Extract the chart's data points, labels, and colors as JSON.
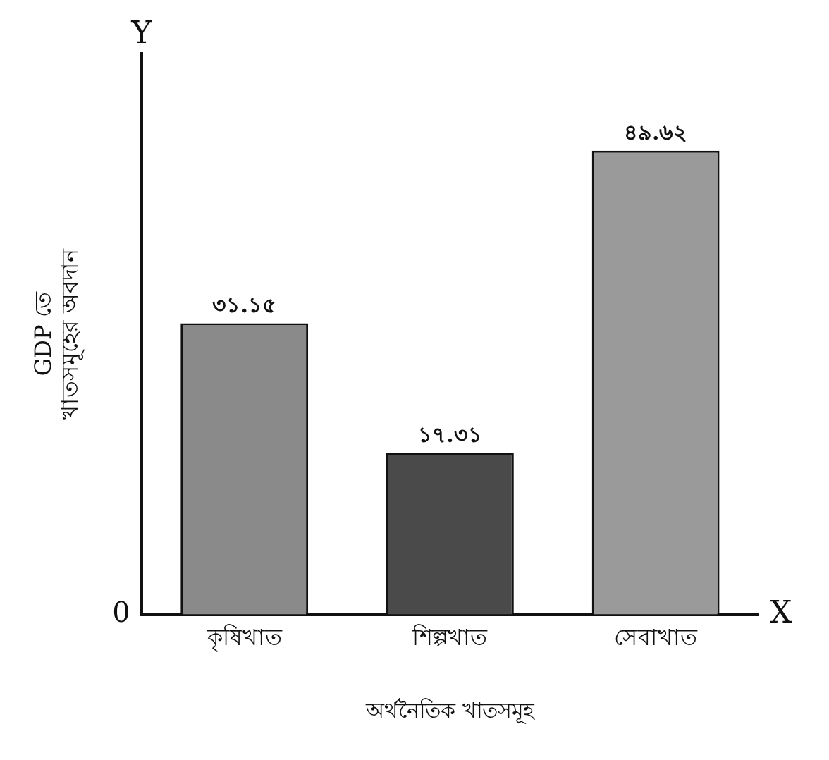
{
  "chart_data": {
    "type": "bar",
    "categories": [
      "কৃষিখাত",
      "শিল্পখাত",
      "সেবাখাত"
    ],
    "values": [
      31.15,
      17.31,
      49.62
    ],
    "value_labels": [
      "৩১.১৫",
      "১৭.৩১",
      "৪৯.৬২"
    ],
    "colors": [
      "#8a8a8a",
      "#4a4a4a",
      "#9a9a9a"
    ],
    "xlabel": "অর্থনৈতিক খাতসমূহ",
    "ylabel": "GDP তে\nখাতসমূহের অবদান",
    "annotations": [
      "Y",
      "X",
      "0"
    ],
    "grid": false,
    "legend": false
  }
}
